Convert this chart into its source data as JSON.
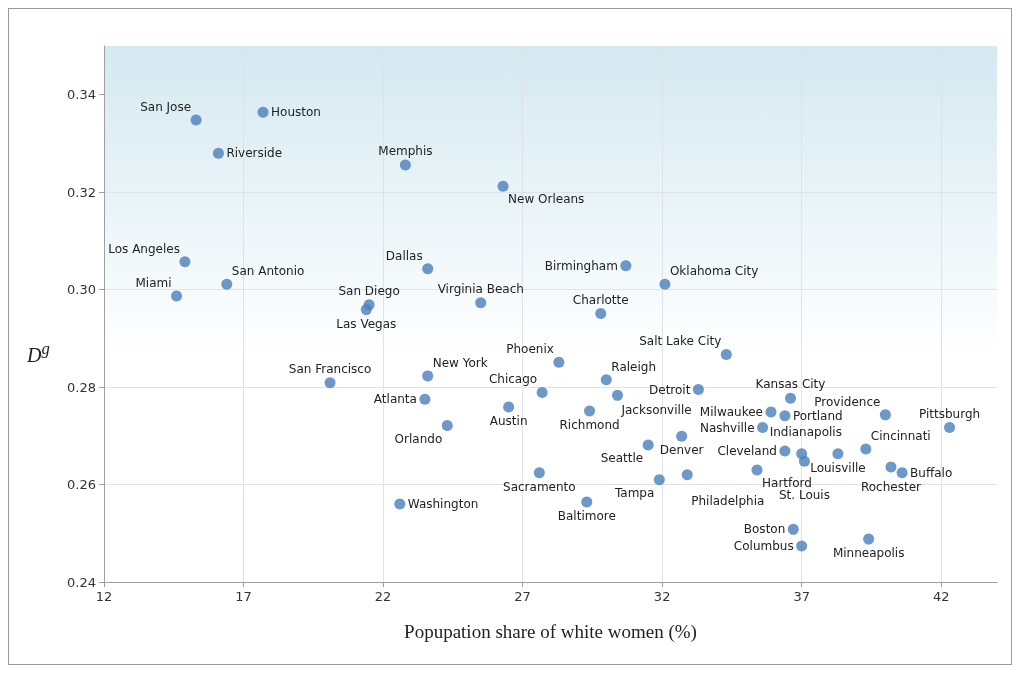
{
  "chart_data": {
    "type": "scatter",
    "xlabel": "Popupation share of white women (%)",
    "ylabel": "D$^{g}$",
    "x": [
      15.3,
      17.7,
      16.1,
      22.8,
      26.3,
      14.9,
      23.6,
      16.4,
      14.6,
      30.7,
      32.1,
      21.5,
      21.4,
      25.5,
      29.8,
      34.3,
      28.3,
      23.6,
      30.0,
      20.1,
      27.7,
      33.3,
      30.4,
      23.5,
      36.6,
      26.5,
      29.4,
      35.9,
      36.4,
      40.0,
      42.3,
      35.6,
      24.3,
      32.7,
      31.5,
      36.4,
      37.0,
      37.1,
      38.3,
      39.3,
      40.2,
      40.6,
      35.4,
      27.6,
      31.9,
      32.9,
      22.6,
      29.3,
      36.7,
      37.0,
      39.4
    ],
    "series": [
      {
        "color": "#4a7ebb",
        "values": [
          0.3348,
          0.3364,
          0.328,
          0.3256,
          0.3212,
          0.3057,
          0.3043,
          0.3011,
          0.2987,
          0.3049,
          0.3011,
          0.2969,
          0.2959,
          0.2973,
          0.2951,
          0.2867,
          0.2851,
          0.2823,
          0.2815,
          0.2809,
          0.2789,
          0.2795,
          0.2783,
          0.2775,
          0.2777,
          0.2759,
          0.2751,
          0.2749,
          0.2741,
          0.2743,
          0.2717,
          0.2717,
          0.2721,
          0.2699,
          0.2681,
          0.2669,
          0.2663,
          0.2648,
          0.2663,
          0.2673,
          0.2636,
          0.2624,
          0.263,
          0.2624,
          0.261,
          0.262,
          0.256,
          0.2564,
          0.2508,
          0.2474,
          0.2488
        ]
      }
    ],
    "annotations": [
      {
        "text": "San Jose",
        "x": 15.3,
        "y": 0.3348
      },
      {
        "text": "Houston",
        "x": 17.7,
        "y": 0.3364
      },
      {
        "text": "Riverside",
        "x": 16.1,
        "y": 0.328
      },
      {
        "text": "Memphis",
        "x": 22.8,
        "y": 0.3256
      },
      {
        "text": "New Orleans",
        "x": 26.3,
        "y": 0.3212
      },
      {
        "text": "Los Angeles",
        "x": 14.9,
        "y": 0.3057
      },
      {
        "text": "Dallas",
        "x": 23.6,
        "y": 0.3043
      },
      {
        "text": "San Antonio",
        "x": 16.4,
        "y": 0.3011
      },
      {
        "text": "Miami",
        "x": 14.6,
        "y": 0.2987
      },
      {
        "text": "Birmingham",
        "x": 30.7,
        "y": 0.3049
      },
      {
        "text": "Oklahoma City",
        "x": 32.1,
        "y": 0.3011
      },
      {
        "text": "San Diego",
        "x": 21.5,
        "y": 0.2969
      },
      {
        "text": "Las Vegas",
        "x": 21.4,
        "y": 0.2959
      },
      {
        "text": "Virginia Beach",
        "x": 25.5,
        "y": 0.2973
      },
      {
        "text": "Charlotte",
        "x": 29.8,
        "y": 0.2951
      },
      {
        "text": "Salt Lake City",
        "x": 34.3,
        "y": 0.2867
      },
      {
        "text": "Phoenix",
        "x": 28.3,
        "y": 0.2851
      },
      {
        "text": "New York",
        "x": 23.6,
        "y": 0.2823
      },
      {
        "text": "Raleigh",
        "x": 30.0,
        "y": 0.2815
      },
      {
        "text": "San Francisco",
        "x": 20.1,
        "y": 0.2809
      },
      {
        "text": "Chicago",
        "x": 27.7,
        "y": 0.2789
      },
      {
        "text": "Detroit",
        "x": 33.3,
        "y": 0.2795
      },
      {
        "text": "Jacksonville",
        "x": 30.4,
        "y": 0.2783
      },
      {
        "text": "Atlanta",
        "x": 23.5,
        "y": 0.2775
      },
      {
        "text": "Kansas City",
        "x": 36.6,
        "y": 0.2777
      },
      {
        "text": "Austin",
        "x": 26.5,
        "y": 0.2759
      },
      {
        "text": "Richmond",
        "x": 29.4,
        "y": 0.2751
      },
      {
        "text": "Milwaukee",
        "x": 35.9,
        "y": 0.2749
      },
      {
        "text": "Portland",
        "x": 36.4,
        "y": 0.2741
      },
      {
        "text": "Providence",
        "x": 40.0,
        "y": 0.2743
      },
      {
        "text": "Pittsburgh",
        "x": 42.3,
        "y": 0.2717
      },
      {
        "text": "Nashville",
        "x": 35.6,
        "y": 0.2717
      },
      {
        "text": "Orlando",
        "x": 24.3,
        "y": 0.2721
      },
      {
        "text": "Denver",
        "x": 32.7,
        "y": 0.2699
      },
      {
        "text": "Seattle",
        "x": 31.5,
        "y": 0.2681
      },
      {
        "text": "Cleveland",
        "x": 36.4,
        "y": 0.2669
      },
      {
        "text": "Indianapolis",
        "x": 37.0,
        "y": 0.2663
      },
      {
        "text": "St. Louis",
        "x": 37.1,
        "y": 0.2648
      },
      {
        "text": "Louisville",
        "x": 38.3,
        "y": 0.2663
      },
      {
        "text": "Cincinnati",
        "x": 39.3,
        "y": 0.2673
      },
      {
        "text": "Rochester",
        "x": 40.2,
        "y": 0.2636
      },
      {
        "text": "Buffalo",
        "x": 40.6,
        "y": 0.2624
      },
      {
        "text": "Hartford",
        "x": 35.4,
        "y": 0.263
      },
      {
        "text": "Sacramento",
        "x": 27.6,
        "y": 0.2624
      },
      {
        "text": "Tampa",
        "x": 31.9,
        "y": 0.261
      },
      {
        "text": "Philadelphia",
        "x": 32.9,
        "y": 0.262
      },
      {
        "text": "Washington",
        "x": 22.6,
        "y": 0.256
      },
      {
        "text": "Baltimore",
        "x": 29.3,
        "y": 0.2564
      },
      {
        "text": "Boston",
        "x": 36.7,
        "y": 0.2508
      },
      {
        "text": "Columbus",
        "x": 37.0,
        "y": 0.2474
      },
      {
        "text": "Minneapolis",
        "x": 39.4,
        "y": 0.2488
      }
    ],
    "xlim": [
      12,
      44
    ],
    "xticks": [
      12,
      17,
      22,
      27,
      32,
      37,
      42
    ],
    "ylim": [
      0.24,
      0.35
    ],
    "yticks": [
      0.24,
      0.26,
      0.28,
      {
        "value": 0.3,
        "label": "0.30"
      },
      0.32,
      0.34
    ],
    "grid": true,
    "marker": "circle"
  }
}
